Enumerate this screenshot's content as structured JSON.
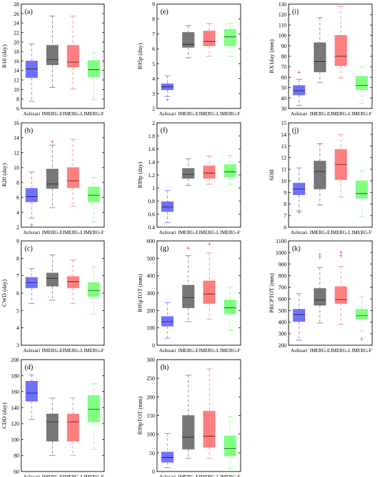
{
  "figure": {
    "categories": [
      "Asfezari",
      "IMERG-E",
      "IMERG-L",
      "IMERG-F"
    ],
    "colors": [
      "#7070ff",
      "#777777",
      "#ff7f7f",
      "#80ff80"
    ]
  },
  "chart_data": [
    {
      "type": "box",
      "panel": "(a)",
      "ylabel": "R10 (day)",
      "ylim": [
        6,
        28
      ],
      "ticks": [
        6,
        8,
        10,
        12,
        14,
        16,
        18,
        20,
        22,
        24,
        26,
        28
      ],
      "series": [
        {
          "min": 7.5,
          "q1": 12.5,
          "median": 14.3,
          "q3": 16.0,
          "max": 19.6,
          "outliers": []
        },
        {
          "min": 10.4,
          "q1": 15.2,
          "median": 16.3,
          "q3": 19.3,
          "max": 25.5,
          "outliers": []
        },
        {
          "min": 10.1,
          "q1": 14.7,
          "median": 15.8,
          "q3": 19.3,
          "max": 25.5,
          "outliers": []
        },
        {
          "min": 7.8,
          "q1": 12.6,
          "median": 14.2,
          "q3": 16.1,
          "max": 17.8,
          "outliers": []
        }
      ]
    },
    {
      "type": "box",
      "panel": "(e)",
      "ylabel": "R95p (day)",
      "ylim": [
        2,
        9
      ],
      "ticks": [
        2,
        3,
        4,
        5,
        6,
        7,
        8,
        9
      ],
      "series": [
        {
          "min": 2.8,
          "q1": 3.25,
          "median": 3.45,
          "q3": 3.65,
          "max": 4.2,
          "outliers": [
            2.6
          ]
        },
        {
          "min": 5.4,
          "q1": 6.1,
          "median": 6.3,
          "q3": 7.1,
          "max": 7.55,
          "outliers": []
        },
        {
          "min": 5.5,
          "q1": 6.2,
          "median": 6.5,
          "q3": 7.2,
          "max": 7.7,
          "outliers": []
        },
        {
          "min": 5.5,
          "q1": 6.2,
          "median": 6.8,
          "q3": 7.3,
          "max": 7.7,
          "outliers": []
        }
      ]
    },
    {
      "type": "box",
      "panel": "(i)",
      "ylabel": "RX1day (mm)",
      "ylim": [
        30,
        130
      ],
      "ticks": [
        30,
        40,
        50,
        60,
        70,
        80,
        90,
        100,
        110,
        120,
        130
      ],
      "series": [
        {
          "min": 33,
          "q1": 43,
          "median": 47,
          "q3": 52,
          "max": 58,
          "outliers": [
            65
          ]
        },
        {
          "min": 55,
          "q1": 65,
          "median": 75,
          "q3": 93,
          "max": 117,
          "outliers": []
        },
        {
          "min": 59,
          "q1": 71,
          "median": 80,
          "q3": 100,
          "max": 128,
          "outliers": []
        },
        {
          "min": 35,
          "q1": 48,
          "median": 52,
          "q3": 61,
          "max": 70,
          "outliers": []
        }
      ]
    },
    {
      "type": "box",
      "panel": "(b)",
      "ylabel": "R20 (day)",
      "ylim": [
        2,
        16
      ],
      "ticks": [
        2,
        4,
        6,
        8,
        10,
        12,
        14,
        16
      ],
      "series": [
        {
          "min": 3.2,
          "q1": 5.4,
          "median": 6.1,
          "q3": 7.2,
          "max": 9.4,
          "outliers": [
            2.3
          ]
        },
        {
          "min": 4.6,
          "q1": 7.2,
          "median": 7.8,
          "q3": 9.8,
          "max": 13.0,
          "outliers": [
            13.5
          ]
        },
        {
          "min": 4.8,
          "q1": 7.3,
          "median": 8.2,
          "q3": 10.0,
          "max": 13.8,
          "outliers": []
        },
        {
          "min": 2.7,
          "q1": 5.4,
          "median": 6.3,
          "q3": 7.4,
          "max": 8.7,
          "outliers": []
        }
      ]
    },
    {
      "type": "box",
      "panel": "(f)",
      "ylabel": "R99p (day)",
      "ylim": [
        0.4,
        2.0
      ],
      "ticks": [
        0.4,
        0.6,
        0.8,
        1.0,
        1.2,
        1.4,
        1.6,
        1.8,
        2.0
      ],
      "series": [
        {
          "min": 0.47,
          "q1": 0.64,
          "median": 0.71,
          "q3": 0.79,
          "max": 0.96,
          "outliers": []
        },
        {
          "min": 1.04,
          "q1": 1.15,
          "median": 1.21,
          "q3": 1.3,
          "max": 1.45,
          "outliers": []
        },
        {
          "min": 1.06,
          "q1": 1.15,
          "median": 1.23,
          "q3": 1.34,
          "max": 1.49,
          "outliers": []
        },
        {
          "min": 1.06,
          "q1": 1.17,
          "median": 1.25,
          "q3": 1.36,
          "max": 1.5,
          "outliers": []
        }
      ]
    },
    {
      "type": "box",
      "panel": "(j)",
      "ylabel": "SDII",
      "ylim": [
        6,
        15
      ],
      "ticks": [
        6,
        7,
        8,
        9,
        10,
        11,
        12,
        13,
        14,
        15
      ],
      "series": [
        {
          "min": 7.4,
          "q1": 8.8,
          "median": 9.3,
          "q3": 9.8,
          "max": 11.1,
          "outliers": [
            7.3
          ]
        },
        {
          "min": 7.9,
          "q1": 9.3,
          "median": 10.8,
          "q3": 11.7,
          "max": 13.2,
          "outliers": []
        },
        {
          "min": 8.6,
          "q1": 10.1,
          "median": 11.4,
          "q3": 12.7,
          "max": 14.0,
          "outliers": []
        },
        {
          "min": 6.9,
          "q1": 8.5,
          "median": 8.9,
          "q3": 10.0,
          "max": 10.9,
          "outliers": []
        }
      ]
    },
    {
      "type": "box",
      "panel": "(c)",
      "ylabel": "CWD (day)",
      "ylim": [
        3,
        9
      ],
      "ticks": [
        3,
        4,
        5,
        6,
        7,
        8,
        9
      ],
      "series": [
        {
          "min": 5.4,
          "q1": 6.3,
          "median": 6.6,
          "q3": 6.9,
          "max": 7.4,
          "outliers": []
        },
        {
          "min": 5.6,
          "q1": 6.4,
          "median": 6.85,
          "q3": 7.15,
          "max": 8.2,
          "outliers": []
        },
        {
          "min": 5.4,
          "q1": 6.3,
          "median": 6.65,
          "q3": 6.95,
          "max": 7.9,
          "outliers": []
        },
        {
          "min": 4.8,
          "q1": 5.8,
          "median": 6.15,
          "q3": 6.6,
          "max": 7.5,
          "outliers": []
        }
      ]
    },
    {
      "type": "box",
      "panel": "(g)",
      "ylabel": "R95pTOT (mm)",
      "ylim": [
        0,
        600
      ],
      "ticks": [
        0,
        100,
        200,
        300,
        400,
        500,
        600
      ],
      "series": [
        {
          "min": 40,
          "q1": 110,
          "median": 135,
          "q3": 165,
          "max": 245,
          "outliers": []
        },
        {
          "min": 135,
          "q1": 215,
          "median": 275,
          "q3": 345,
          "max": 515,
          "outliers": [
            560
          ]
        },
        {
          "min": 150,
          "q1": 240,
          "median": 295,
          "q3": 370,
          "max": 530,
          "outliers": [
            585
          ]
        },
        {
          "min": 85,
          "q1": 180,
          "median": 215,
          "q3": 260,
          "max": 335,
          "outliers": []
        }
      ]
    },
    {
      "type": "box",
      "panel": "(k)",
      "ylabel": "PRCPTOT (mm)",
      "ylim": [
        200,
        1100
      ],
      "ticks": [
        200,
        300,
        400,
        500,
        600,
        700,
        800,
        900,
        1000,
        1100
      ],
      "series": [
        {
          "min": 245,
          "q1": 405,
          "median": 465,
          "q3": 510,
          "max": 645,
          "outliers": []
        },
        {
          "min": 390,
          "q1": 545,
          "median": 590,
          "q3": 690,
          "max": 870,
          "outliers": [
            960,
            985
          ]
        },
        {
          "min": 380,
          "q1": 560,
          "median": 595,
          "q3": 705,
          "max": 880,
          "outliers": [
            975,
            1005
          ]
        },
        {
          "min": 320,
          "q1": 425,
          "median": 455,
          "q3": 510,
          "max": 620,
          "outliers": [
            255
          ]
        }
      ]
    },
    {
      "type": "box",
      "panel": "(d)",
      "ylabel": "CDD (day)",
      "ylim": [
        60,
        200
      ],
      "ticks": [
        60,
        80,
        100,
        120,
        140,
        160,
        180,
        200
      ],
      "series": [
        {
          "min": 125,
          "q1": 148,
          "median": 158,
          "q3": 173,
          "max": 181,
          "outliers": []
        },
        {
          "min": 80,
          "q1": 98,
          "median": 122,
          "q3": 132,
          "max": 152,
          "outliers": []
        },
        {
          "min": 80,
          "q1": 98,
          "median": 122,
          "q3": 132,
          "max": 152,
          "outliers": []
        },
        {
          "min": 88,
          "q1": 122,
          "median": 138,
          "q3": 155,
          "max": 170,
          "outliers": []
        }
      ]
    },
    {
      "type": "box",
      "panel": "(h)",
      "ylabel": "R99pTOT (mm)",
      "ylim": [
        0,
        300
      ],
      "ticks": [
        0,
        50,
        100,
        150,
        200,
        250,
        300
      ],
      "series": [
        {
          "min": 10,
          "q1": 25,
          "median": 38,
          "q3": 52,
          "max": 102,
          "outliers": []
        },
        {
          "min": 35,
          "q1": 60,
          "median": 92,
          "q3": 150,
          "max": 258,
          "outliers": []
        },
        {
          "min": 35,
          "q1": 65,
          "median": 95,
          "q3": 162,
          "max": 275,
          "outliers": []
        },
        {
          "min": 8,
          "q1": 42,
          "median": 62,
          "q3": 95,
          "max": 148,
          "outliers": []
        }
      ]
    }
  ]
}
